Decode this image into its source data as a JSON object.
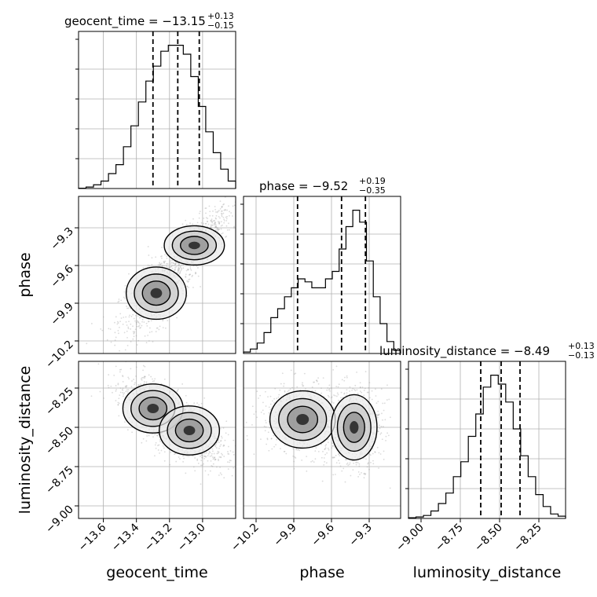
{
  "chart_data": {
    "type": "corner",
    "parameters": [
      {
        "name": "geocent_time",
        "title": "geocent_time = −13.15",
        "title_sup": "+0.13",
        "title_sub": "−0.15",
        "range": [
          -13.75,
          -12.8
        ],
        "ticks": [
          -13.6,
          -13.4,
          -13.2,
          -13.0
        ],
        "tick_labels": [
          "−13.6",
          "−13.4",
          "−13.2",
          "−13.0"
        ],
        "quantiles": [
          -13.3,
          -13.15,
          -13.02
        ],
        "hist_counts": [
          0.2,
          1,
          2.5,
          5,
          10,
          16,
          28,
          42,
          58,
          72,
          82,
          92,
          96,
          96,
          90,
          75,
          55,
          38,
          24,
          13,
          5
        ],
        "hist_max": 100
      },
      {
        "name": "phase",
        "title": "phase = −9.52",
        "title_sup": "+0.19",
        "title_sub": "−0.35",
        "range": [
          -10.3,
          -9.05
        ],
        "ticks": [
          -10.2,
          -9.9,
          -9.6,
          -9.3
        ],
        "tick_labels": [
          "−10.2",
          "−9.9",
          "−9.6",
          "−9.3"
        ],
        "quantiles": [
          -9.87,
          -9.52,
          -9.33
        ],
        "hist_counts": [
          1,
          3,
          7,
          14,
          24,
          30,
          38,
          44,
          50,
          48,
          44,
          44,
          50,
          55,
          70,
          85,
          96,
          88,
          62,
          38,
          20,
          8,
          2
        ],
        "hist_max": 100
      },
      {
        "name": "luminosity_distance",
        "title": "luminosity_distance = −8.49",
        "title_sup": "+0.13",
        "title_sub": "−0.13",
        "range": [
          -9.08,
          -8.08
        ],
        "ticks": [
          -9.0,
          -8.75,
          -8.5,
          -8.25
        ],
        "tick_labels": [
          "−9.00",
          "−8.75",
          "−8.50",
          "−8.25"
        ],
        "quantiles": [
          -8.62,
          -8.49,
          -8.37
        ],
        "hist_counts": [
          0.5,
          1,
          2,
          5,
          10,
          17,
          28,
          38,
          55,
          70,
          88,
          96,
          90,
          78,
          60,
          42,
          28,
          16,
          8,
          3,
          1.5
        ],
        "hist_max": 100
      }
    ],
    "pairs": [
      {
        "x": "geocent_time",
        "y": "phase",
        "modes": [
          {
            "x": -13.05,
            "y": -9.44,
            "sx": 0.07,
            "sy": 0.06
          },
          {
            "x": -13.28,
            "y": -9.82,
            "sx": 0.07,
            "sy": 0.08
          }
        ]
      },
      {
        "x": "geocent_time",
        "y": "luminosity_distance",
        "modes": [
          {
            "x": -13.3,
            "y": -8.38,
            "sx": 0.07,
            "sy": 0.06
          },
          {
            "x": -13.08,
            "y": -8.52,
            "sx": 0.07,
            "sy": 0.06
          }
        ]
      },
      {
        "x": "phase",
        "y": "luminosity_distance",
        "modes": [
          {
            "x": -9.83,
            "y": -8.45,
            "sx": 0.1,
            "sy": 0.07
          },
          {
            "x": -9.42,
            "y": -8.5,
            "sx": 0.07,
            "sy": 0.08
          }
        ]
      }
    ],
    "xlabels": [
      "geocent_time",
      "phase",
      "luminosity_distance"
    ],
    "ylabels": [
      "phase",
      "luminosity_distance"
    ],
    "grid": true
  }
}
